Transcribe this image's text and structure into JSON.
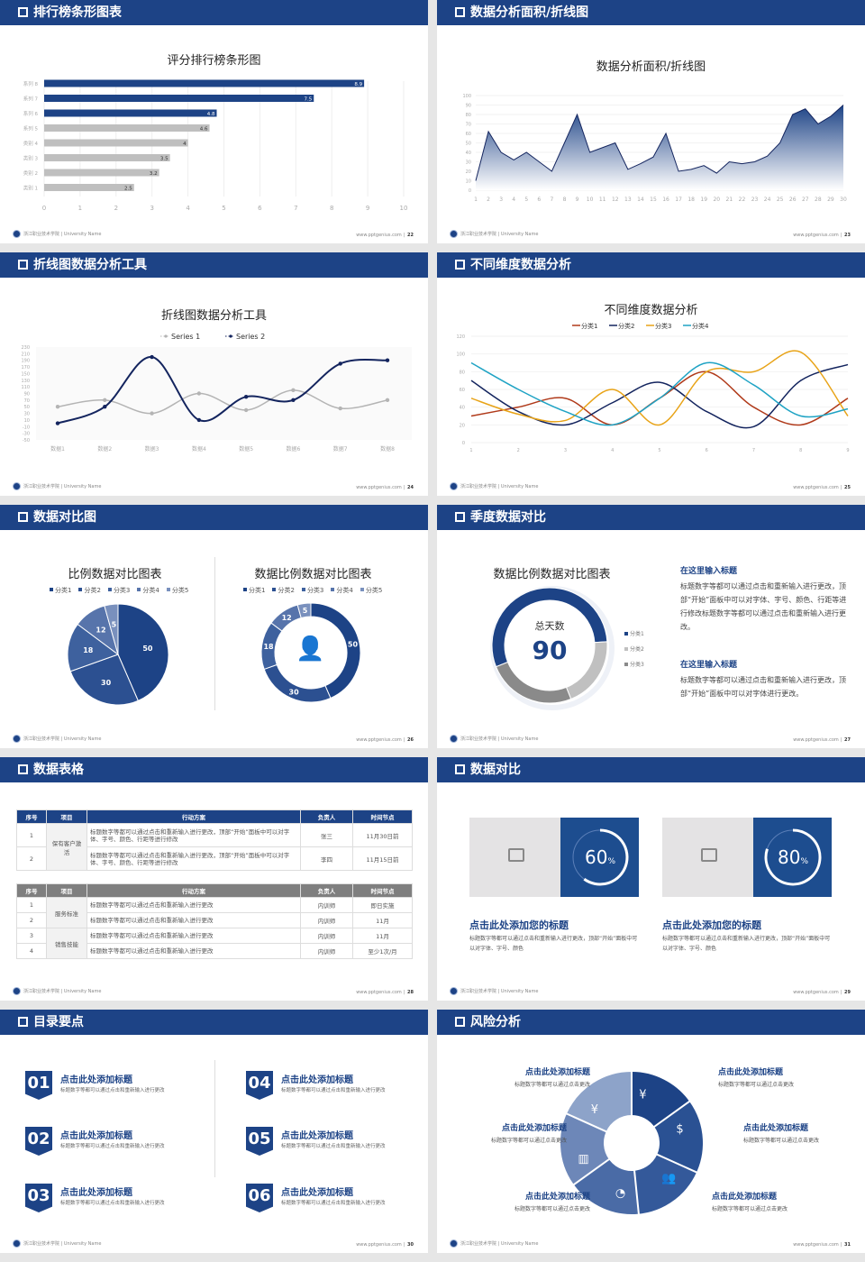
{
  "footer": {
    "school": "浙江职业技术学院 | University Name",
    "site": "www.pptgenius.com"
  },
  "colors": {
    "header": "#1d4386",
    "blue": "#1d4386",
    "gray": "#bfbfbf"
  },
  "slides": [
    {
      "title": "排行榜条形图表",
      "page": "22"
    },
    {
      "title": "数据分析面积/折线图",
      "page": "23"
    },
    {
      "title": "折线图数据分析工具",
      "page": "24"
    },
    {
      "title": "不同维度数据分析",
      "page": "25"
    },
    {
      "title": "数据对比图",
      "page": "26"
    },
    {
      "title": "季度数据对比",
      "page": "27",
      "center_label": "总天数",
      "center_value": "90",
      "blocks": [
        {
          "heading": "在这里输入标题",
          "text": "标题数字等都可以通过点击和重新输入进行更改，顶部“开始”面板中可以对字体、字号、颜色、行距等进行修改标题数字等都可以通过点击和重新输入进行更改。"
        },
        {
          "heading": "在这里输入标题",
          "text": "标题数字等都可以通过点击和重新输入进行更改，顶部“开始”面板中可以对字体进行更改。"
        }
      ]
    },
    {
      "title": "数据表格",
      "page": "28",
      "table1": {
        "headers": [
          "序号",
          "项目",
          "行动方案",
          "负责人",
          "时间节点"
        ],
        "group": "保有客户激活",
        "rows": [
          [
            "1",
            "标题数字等都可以通过点击和重新输入进行更改，顶部“开始”面板中可以对字体、字号、颜色、行距等进行修改",
            "张三",
            "11月30日前"
          ],
          [
            "2",
            "标题数字等都可以通过点击和重新输入进行更改，顶部“开始”面板中可以对字体、字号、颜色、行距等进行修改",
            "李四",
            "11月15日前"
          ]
        ]
      },
      "table2": {
        "headers": [
          "序号",
          "项目",
          "行动方案",
          "负责人",
          "时间节点"
        ],
        "groups": [
          "服务标准",
          "销售技能"
        ],
        "rows": [
          [
            "1",
            "标题数字等都可以通过点击和重新输入进行更改",
            "内训师",
            "即日实施"
          ],
          [
            "2",
            "标题数字等都可以通过点击和重新输入进行更改",
            "内训师",
            "11月"
          ],
          [
            "3",
            "标题数字等都可以通过点击和重新输入进行更改",
            "内训师",
            "11月"
          ],
          [
            "4",
            "标题数字等都可以通过点击和重新输入进行更改",
            "内训师",
            "至少1次/月"
          ]
        ]
      }
    },
    {
      "title": "数据对比",
      "page": "29",
      "cards": [
        {
          "percent": 60,
          "value": "60",
          "unit": "%",
          "heading": "点击此处添加您的标题",
          "text": "标题数字等都可以通过点击和重新输入进行更改，顶部“开始”面板中可以对字体、字号、颜色",
          "icon": "image-add-icon"
        },
        {
          "percent": 80,
          "value": "80",
          "unit": "%",
          "heading": "点击此处添加您的标题",
          "text": "标题数字等都可以通过点击和重新输入进行更改，顶部“开始”面板中可以对字体、字号、颜色",
          "icon": "image-add-icon"
        }
      ]
    },
    {
      "title": "目录要点",
      "page": "30",
      "items": [
        {
          "num": "01",
          "heading": "点击此处添加标题",
          "text": "标题数字等都可以通过点击和重新输入进行更改"
        },
        {
          "num": "02",
          "heading": "点击此处添加标题",
          "text": "标题数字等都可以通过点击和重新输入进行更改"
        },
        {
          "num": "03",
          "heading": "点击此处添加标题",
          "text": "标题数字等都可以通过点击和重新输入进行更改"
        },
        {
          "num": "04",
          "heading": "点击此处添加标题",
          "text": "标题数字等都可以通过点击和重新输入进行更改"
        },
        {
          "num": "05",
          "heading": "点击此处添加标题",
          "text": "标题数字等都可以通过点击和重新输入进行更改"
        },
        {
          "num": "06",
          "heading": "点击此处添加标题",
          "text": "标题数字等都可以通过点击和重新输入进行更改"
        }
      ]
    },
    {
      "title": "风险分析",
      "page": "31",
      "items": [
        {
          "heading": "点击此处添加标题",
          "text": "标题数字等都可以通过点击更改",
          "icon": "money-bag-icon"
        },
        {
          "heading": "点击此处添加标题",
          "text": "标题数字等都可以通过点击更改",
          "icon": "coins-icon"
        },
        {
          "heading": "点击此处添加标题",
          "text": "标题数字等都可以通过点击更改",
          "icon": "users-icon"
        },
        {
          "heading": "点击此处添加标题",
          "text": "标题数字等都可以通过点击更改",
          "icon": "pie-chart-icon"
        },
        {
          "heading": "点击此处添加标题",
          "text": "标题数字等都可以通过点击更改",
          "icon": "building-icon"
        },
        {
          "heading": "点击此处添加标题",
          "text": "标题数字等都可以通过点击更改",
          "icon": "yen-hand-icon"
        }
      ]
    }
  ],
  "chart_data": [
    {
      "type": "bar",
      "orientation": "horizontal",
      "title": "评分排行榜条形图",
      "categories": [
        "类别 1",
        "类别 2",
        "类别 3",
        "类别 4",
        "系列 5",
        "系列 6",
        "系列 7",
        "系列 8"
      ],
      "values": [
        2.5,
        3.2,
        3.5,
        4,
        4.6,
        4.8,
        7.5,
        8.9
      ],
      "value_labels": [
        "2.5",
        "3.2",
        "3.5",
        "4",
        "4.6",
        "4.8",
        "7.5",
        "8.9"
      ],
      "colors": [
        "#bfbfbf",
        "#bfbfbf",
        "#bfbfbf",
        "#bfbfbf",
        "#bfbfbf",
        "#1d4386",
        "#1d4386",
        "#1d4386"
      ],
      "xlim": [
        0,
        10
      ],
      "xticks": [
        0,
        1,
        2,
        3,
        4,
        5,
        6,
        7,
        8,
        9,
        10
      ],
      "grid": true
    },
    {
      "type": "area",
      "title": "数据分析面积/折线图",
      "x": [
        1,
        2,
        3,
        4,
        5,
        6,
        7,
        8,
        9,
        10,
        11,
        12,
        13,
        14,
        15,
        16,
        17,
        18,
        19,
        20,
        21,
        22,
        23,
        24,
        25,
        26,
        27,
        28,
        29,
        30
      ],
      "values": [
        10,
        62,
        40,
        32,
        40,
        30,
        20,
        50,
        80,
        40,
        45,
        50,
        22,
        28,
        35,
        60,
        20,
        22,
        26,
        18,
        30,
        28,
        30,
        36,
        50,
        80,
        86,
        70,
        78,
        90
      ],
      "ylim": [
        0,
        100
      ],
      "yticks": [
        0,
        10,
        20,
        30,
        40,
        50,
        60,
        70,
        80,
        90,
        100
      ],
      "color": "#1d4386",
      "grid": true
    },
    {
      "type": "line",
      "title": "折线图数据分析工具",
      "smooth": true,
      "categories": [
        "数据1",
        "数据2",
        "数据3",
        "数据4",
        "数据5",
        "数据6",
        "数据7",
        "数据8"
      ],
      "series": [
        {
          "name": "Series 1",
          "values": [
            50,
            70,
            30,
            90,
            40,
            100,
            45,
            70
          ],
          "color": "#b4b4b4"
        },
        {
          "name": "Series 2",
          "values": [
            0,
            50,
            200,
            10,
            80,
            70,
            180,
            190
          ],
          "color": "#13245e"
        }
      ],
      "ylim": [
        -50,
        230
      ],
      "yticks": [
        -50,
        -30,
        -10,
        10,
        30,
        50,
        70,
        90,
        110,
        130,
        150,
        170,
        190,
        210,
        230
      ],
      "legend": "top"
    },
    {
      "type": "line",
      "title": "不同维度数据分析",
      "smooth": true,
      "x": [
        1,
        2,
        3,
        4,
        5,
        6,
        7,
        8,
        9
      ],
      "series": [
        {
          "name": "分类1",
          "values": [
            30,
            40,
            50,
            20,
            50,
            80,
            40,
            20,
            50
          ],
          "color": "#b03a1a"
        },
        {
          "name": "分类2",
          "values": [
            70,
            35,
            20,
            45,
            68,
            35,
            18,
            70,
            88
          ],
          "color": "#13245e"
        },
        {
          "name": "分类3",
          "values": [
            50,
            32,
            25,
            60,
            20,
            80,
            80,
            102,
            30
          ],
          "color": "#e8a317"
        },
        {
          "name": "分类4",
          "values": [
            90,
            60,
            35,
            20,
            50,
            90,
            65,
            30,
            38
          ],
          "color": "#1fa3c4"
        }
      ],
      "ylim": [
        0,
        120
      ],
      "yticks": [
        0,
        20,
        40,
        60,
        80,
        100,
        120
      ],
      "legend": "top"
    },
    {
      "type": "pie",
      "title": "比例数据对比图表",
      "categories": [
        "分类1",
        "分类2",
        "分类3",
        "分类4",
        "分类5"
      ],
      "values": [
        50,
        30,
        18,
        12,
        5
      ],
      "colors": [
        "#1d4386",
        "#2c5091",
        "#3e619e",
        "#5774ab",
        "#7990bd"
      ],
      "legend": "top"
    },
    {
      "type": "pie",
      "donut": true,
      "title": "数据比例数据对比图表",
      "categories": [
        "分类1",
        "分类2",
        "分类3",
        "分类4",
        "分类5"
      ],
      "values": [
        50,
        30,
        18,
        12,
        5
      ],
      "colors": [
        "#1d4386",
        "#2c5091",
        "#3e619e",
        "#5774ab",
        "#7990bd"
      ],
      "legend": "top",
      "center_icon": "customer-service-icon"
    },
    {
      "type": "pie",
      "donut": true,
      "title": "数据比例数据对比图表",
      "categories": [
        "分类1",
        "分类2",
        "分类3"
      ],
      "values": [
        55,
        20,
        25
      ],
      "colors": [
        "#1d4386",
        "#c0c0c0",
        "#8a8a8a"
      ],
      "legend": "right"
    }
  ]
}
